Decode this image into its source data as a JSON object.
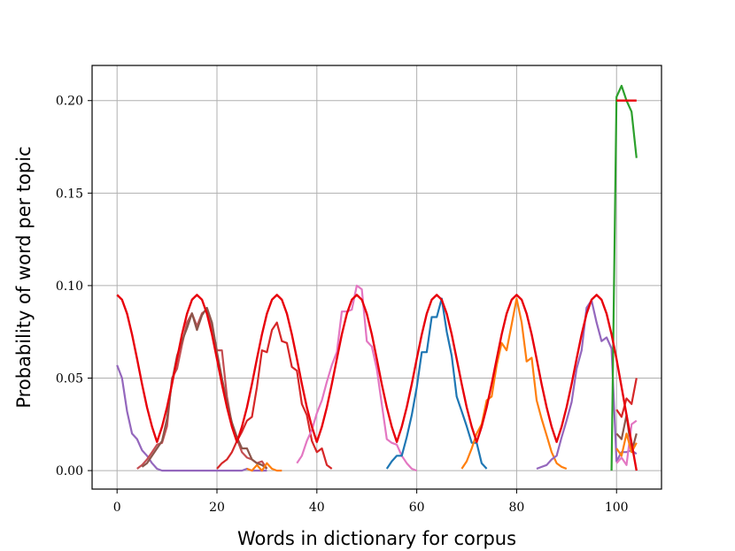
{
  "chart_data": {
    "type": "line",
    "title": "",
    "xlabel": "Words in dictionary for corpus",
    "ylabel": "Probability of word per topic",
    "xlim": [
      -5,
      109
    ],
    "ylim": [
      -0.01,
      0.219
    ],
    "xticks": [
      0,
      20,
      40,
      60,
      80,
      100
    ],
    "xtick_labels": [
      "0",
      "20",
      "40",
      "60",
      "80",
      "100"
    ],
    "yticks": [
      0.0,
      0.05,
      0.1,
      0.15,
      0.2
    ],
    "ytick_labels": [
      "0.00",
      "0.05",
      "0.10",
      "0.15",
      "0.20"
    ],
    "grid": true,
    "legend": "none",
    "true_topics": {
      "color": "#e8000b",
      "gaussian_centers": [
        0,
        16,
        32,
        48,
        64,
        80,
        96
      ],
      "gaussian_peak": 0.095,
      "gaussian_sigma": 4.2,
      "x_range": [
        0,
        100
      ],
      "special_topic": {
        "x": [
          100,
          101,
          102,
          103,
          104
        ],
        "y": [
          0.2,
          0.2,
          0.2,
          0.2,
          0.2
        ]
      }
    },
    "series": [
      {
        "color": "#9467bd",
        "x": [
          0,
          1,
          2,
          3,
          4,
          5,
          6,
          7,
          8,
          9,
          10,
          11,
          12,
          13,
          14,
          15,
          16,
          17,
          18,
          19,
          20,
          21,
          22,
          23,
          24,
          25,
          26,
          27,
          28,
          29,
          30
        ],
        "y": [
          0.057,
          0.05,
          0.032,
          0.02,
          0.017,
          0.011,
          0.008,
          0.004,
          0.001,
          0.0,
          0.0,
          0.0,
          0.0,
          0.0,
          0.0,
          0.0,
          0.0,
          0.0,
          0.0,
          0.0,
          0.0,
          0.0,
          0.0,
          0.0,
          0.0,
          0.0,
          0.001,
          0.0,
          0.0,
          0.0,
          0.0
        ]
      },
      {
        "color": "#c44e52",
        "x": [
          4,
          5,
          6,
          7,
          8,
          9,
          10,
          11,
          12,
          13,
          14,
          15,
          16,
          17,
          18,
          19,
          20,
          21,
          22,
          23,
          24,
          25,
          26,
          27,
          28,
          29,
          30
        ],
        "y": [
          0.001,
          0.003,
          0.006,
          0.01,
          0.014,
          0.015,
          0.024,
          0.05,
          0.055,
          0.068,
          0.08,
          0.085,
          0.078,
          0.085,
          0.087,
          0.078,
          0.065,
          0.065,
          0.04,
          0.025,
          0.017,
          0.01,
          0.007,
          0.006,
          0.004,
          0.005,
          0.001
        ]
      },
      {
        "color": "#8c564b",
        "x": [
          5,
          6,
          7,
          8,
          9,
          10,
          11,
          12,
          13,
          14,
          15,
          16,
          17,
          18,
          19,
          20,
          21,
          22,
          23,
          24,
          25,
          26,
          27,
          28,
          29,
          30
        ],
        "y": [
          0.002,
          0.004,
          0.008,
          0.012,
          0.016,
          0.028,
          0.048,
          0.062,
          0.07,
          0.077,
          0.085,
          0.076,
          0.084,
          0.088,
          0.08,
          0.064,
          0.05,
          0.037,
          0.026,
          0.018,
          0.012,
          0.012,
          0.006,
          0.004,
          0.003,
          0.001
        ]
      },
      {
        "color": "#ff7f0e",
        "x": [
          26,
          27,
          28,
          29,
          30,
          31,
          32,
          33
        ],
        "y": [
          0.001,
          0.0,
          0.003,
          0.0,
          0.004,
          0.001,
          0.0,
          0.0
        ]
      },
      {
        "color": "#d62728",
        "x": [
          20,
          21,
          22,
          23,
          24,
          25,
          26,
          27,
          28,
          29,
          30,
          31,
          32,
          33,
          34,
          35,
          36,
          37,
          38,
          39,
          40,
          41,
          42,
          43
        ],
        "y": [
          0.001,
          0.004,
          0.006,
          0.01,
          0.016,
          0.021,
          0.027,
          0.029,
          0.045,
          0.065,
          0.064,
          0.076,
          0.08,
          0.07,
          0.069,
          0.056,
          0.054,
          0.036,
          0.03,
          0.016,
          0.01,
          0.012,
          0.003,
          0.001
        ]
      },
      {
        "color": "#e377c2",
        "x": [
          36,
          37,
          38,
          39,
          40,
          41,
          42,
          43,
          44,
          45,
          46,
          47,
          48,
          49,
          50,
          51,
          52,
          53,
          54,
          55,
          56,
          57,
          58,
          59,
          60
        ],
        "y": [
          0.004,
          0.008,
          0.016,
          0.022,
          0.031,
          0.038,
          0.048,
          0.057,
          0.064,
          0.086,
          0.086,
          0.087,
          0.1,
          0.098,
          0.07,
          0.067,
          0.055,
          0.036,
          0.017,
          0.015,
          0.014,
          0.008,
          0.004,
          0.001,
          0.0
        ]
      },
      {
        "color": "#1f77b4",
        "x": [
          54,
          55,
          56,
          57,
          58,
          59,
          60,
          61,
          62,
          63,
          64,
          65,
          66,
          67,
          68,
          69,
          70,
          71,
          72,
          73,
          74
        ],
        "y": [
          0.001,
          0.005,
          0.008,
          0.008,
          0.018,
          0.03,
          0.045,
          0.064,
          0.064,
          0.083,
          0.083,
          0.093,
          0.075,
          0.062,
          0.04,
          0.032,
          0.024,
          0.015,
          0.015,
          0.004,
          0.001
        ]
      },
      {
        "color": "#ff7f0e",
        "x": [
          69,
          70,
          71,
          72,
          73,
          74,
          75,
          76,
          77,
          78,
          79,
          80,
          81,
          82,
          83,
          84,
          85,
          86,
          87,
          88,
          89,
          90
        ],
        "y": [
          0.001,
          0.005,
          0.012,
          0.02,
          0.025,
          0.038,
          0.04,
          0.057,
          0.069,
          0.065,
          0.079,
          0.093,
          0.08,
          0.059,
          0.061,
          0.038,
          0.028,
          0.019,
          0.01,
          0.004,
          0.002,
          0.001
        ]
      },
      {
        "color": "#9467bd",
        "x": [
          84,
          85,
          86,
          87,
          88,
          89,
          90,
          91,
          92,
          93,
          94,
          95,
          96,
          97,
          98,
          99,
          100,
          101,
          102,
          103,
          104
        ],
        "y": [
          0.001,
          0.002,
          0.003,
          0.006,
          0.008,
          0.018,
          0.027,
          0.037,
          0.055,
          0.065,
          0.088,
          0.092,
          0.08,
          0.07,
          0.072,
          0.066,
          0.005,
          0.01,
          0.01,
          0.011,
          0.009
        ]
      },
      {
        "color": "#2ca02c",
        "x": [
          99,
          100,
          101,
          102,
          103,
          104
        ],
        "y": [
          0.0,
          0.202,
          0.208,
          0.2,
          0.194,
          0.169
        ]
      },
      {
        "color": "#d62728",
        "x": [
          100,
          101,
          102,
          103,
          104
        ],
        "y": [
          0.033,
          0.029,
          0.039,
          0.036,
          0.05
        ]
      },
      {
        "color": "#8c564b",
        "x": [
          100,
          101,
          102,
          103,
          104
        ],
        "y": [
          0.02,
          0.017,
          0.03,
          0.01,
          0.02
        ]
      },
      {
        "color": "#e377c2",
        "x": [
          100,
          101,
          102,
          103,
          104
        ],
        "y": [
          0.004,
          0.007,
          0.003,
          0.025,
          0.027
        ]
      },
      {
        "color": "#ff7f0e",
        "x": [
          100,
          101,
          102,
          103,
          104
        ],
        "y": [
          0.012,
          0.008,
          0.02,
          0.01,
          0.015
        ]
      }
    ]
  }
}
